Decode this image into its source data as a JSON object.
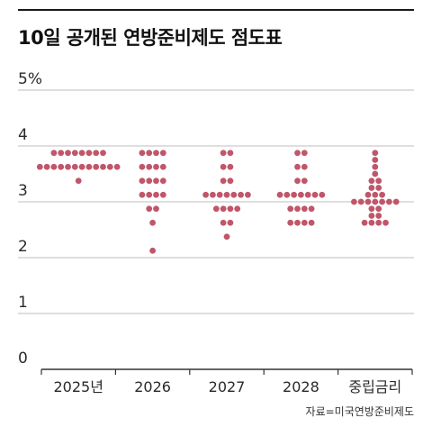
{
  "title": "10일 공개된 연방준비제도 점도표",
  "source": "자료=미국연방준비제도",
  "chart_data": {
    "type": "scatter",
    "subtype": "dot-plot",
    "title": "10일 공개된 연방준비제도 점도표",
    "categories": [
      "2025년",
      "2026",
      "2027",
      "2028",
      "중립금리"
    ],
    "y_ticks": [
      "0",
      "1",
      "2",
      "3",
      "4",
      "5%"
    ],
    "ylim": [
      0,
      5
    ],
    "grid": true,
    "dot_color": "#c0566a",
    "series": [
      {
        "category": "2025년",
        "rates": [
          {
            "y": 3.875,
            "n": 8
          },
          {
            "y": 3.625,
            "n": 12
          },
          {
            "y": 3.375,
            "n": 1
          }
        ]
      },
      {
        "category": "2026",
        "rates": [
          {
            "y": 3.875,
            "n": 4
          },
          {
            "y": 3.625,
            "n": 4
          },
          {
            "y": 3.375,
            "n": 4
          },
          {
            "y": 3.125,
            "n": 4
          },
          {
            "y": 2.875,
            "n": 2
          },
          {
            "y": 2.625,
            "n": 1
          },
          {
            "y": 2.125,
            "n": 1
          }
        ]
      },
      {
        "category": "2027",
        "rates": [
          {
            "y": 3.875,
            "n": 2
          },
          {
            "y": 3.625,
            "n": 2
          },
          {
            "y": 3.375,
            "n": 2
          },
          {
            "y": 3.125,
            "n": 7
          },
          {
            "y": 2.875,
            "n": 4
          },
          {
            "y": 2.625,
            "n": 2
          },
          {
            "y": 2.375,
            "n": 1
          }
        ]
      },
      {
        "category": "2028",
        "rates": [
          {
            "y": 3.875,
            "n": 2
          },
          {
            "y": 3.625,
            "n": 2
          },
          {
            "y": 3.375,
            "n": 2
          },
          {
            "y": 3.125,
            "n": 7
          },
          {
            "y": 2.875,
            "n": 4
          },
          {
            "y": 2.625,
            "n": 4
          }
        ]
      },
      {
        "category": "중립금리",
        "rates": [
          {
            "y": 3.875,
            "n": 1
          },
          {
            "y": 3.75,
            "n": 1
          },
          {
            "y": 3.625,
            "n": 1
          },
          {
            "y": 3.5,
            "n": 1
          },
          {
            "y": 3.375,
            "n": 2
          },
          {
            "y": 3.25,
            "n": 2
          },
          {
            "y": 3.125,
            "n": 3
          },
          {
            "y": 3.0,
            "n": 7
          },
          {
            "y": 2.875,
            "n": 2
          },
          {
            "y": 2.75,
            "n": 2
          },
          {
            "y": 2.625,
            "n": 4
          }
        ]
      }
    ]
  }
}
